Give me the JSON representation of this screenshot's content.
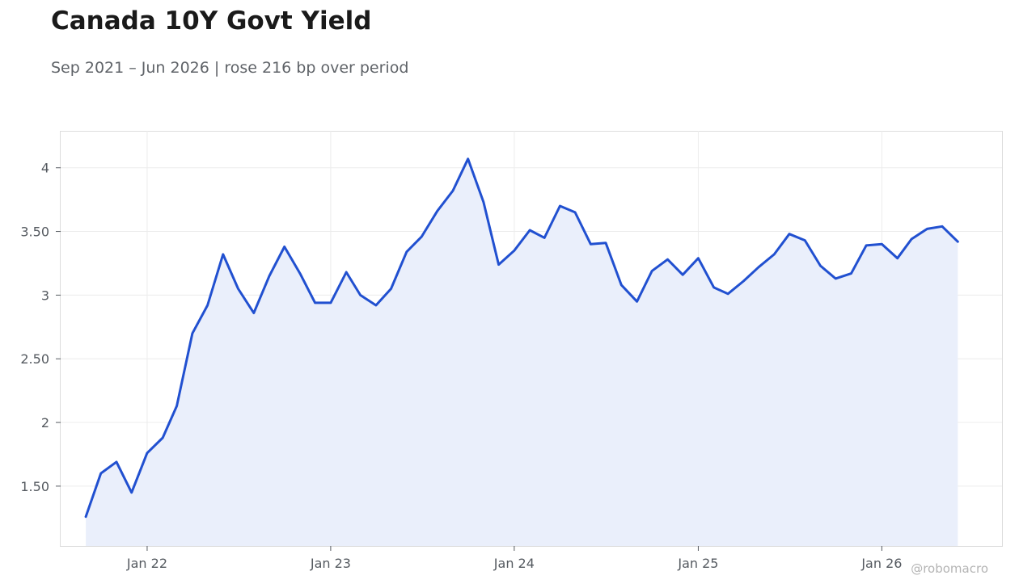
{
  "title": "Canada 10Y Govt Yield",
  "subtitle": "Sep 2021 – Jun 2026 | rose 216 bp over period",
  "watermark": "@robomacro",
  "colors": {
    "line": "#2150d0",
    "fill": "#eaeffb",
    "grid": "#ececec",
    "frame": "#dddddd",
    "title": "#1a1a1a",
    "subtitle": "#5f6368",
    "tick": "#555a60"
  },
  "chart_data": {
    "type": "area",
    "title": "Canada 10Y Govt Yield",
    "xlabel": "",
    "ylabel": "",
    "ylim": [
      1.03,
      4.29
    ],
    "xlim": [
      "2021-07-13",
      "2026-08-28"
    ],
    "grid": true,
    "legend": "none",
    "x_ticks": [
      {
        "date": "2022-01-01",
        "label": "Jan 22"
      },
      {
        "date": "2023-01-01",
        "label": "Jan 23"
      },
      {
        "date": "2024-01-01",
        "label": "Jan 24"
      },
      {
        "date": "2025-01-01",
        "label": "Jan 25"
      },
      {
        "date": "2026-01-01",
        "label": "Jan 26"
      }
    ],
    "y_ticks": [
      {
        "value": 1.5,
        "label": "1.50"
      },
      {
        "value": 2,
        "label": "2"
      },
      {
        "value": 2.5,
        "label": "2.50"
      },
      {
        "value": 3,
        "label": "3"
      },
      {
        "value": 3.5,
        "label": "3.50"
      },
      {
        "value": 4,
        "label": "4"
      }
    ],
    "series": [
      {
        "x": [
          "2021-09-01",
          "2021-10-01",
          "2021-11-01",
          "2021-12-01",
          "2022-01-01",
          "2022-02-01",
          "2022-03-01",
          "2022-04-01",
          "2022-05-01",
          "2022-06-01",
          "2022-07-01",
          "2022-08-01",
          "2022-09-01",
          "2022-10-01",
          "2022-11-01",
          "2022-12-01",
          "2023-01-01",
          "2023-02-01",
          "2023-03-01",
          "2023-04-01",
          "2023-05-01",
          "2023-06-01",
          "2023-07-01",
          "2023-08-01",
          "2023-09-01",
          "2023-10-01",
          "2023-11-01",
          "2023-12-01",
          "2024-01-01",
          "2024-02-01",
          "2024-03-01",
          "2024-04-01",
          "2024-05-01",
          "2024-06-01",
          "2024-07-01",
          "2024-08-01",
          "2024-09-01",
          "2024-10-01",
          "2024-11-01",
          "2024-12-01",
          "2025-01-01",
          "2025-02-01",
          "2025-03-01",
          "2025-04-01",
          "2025-05-01",
          "2025-06-01",
          "2025-07-01",
          "2025-08-01",
          "2025-09-01",
          "2025-10-01",
          "2025-11-01",
          "2025-12-01",
          "2026-01-01",
          "2026-02-01",
          "2026-03-01",
          "2026-04-01",
          "2026-05-01",
          "2026-06-01"
        ],
        "values": [
          1.26,
          1.6,
          1.69,
          1.45,
          1.76,
          1.88,
          2.13,
          2.7,
          2.92,
          3.32,
          3.05,
          2.86,
          3.15,
          3.38,
          3.17,
          2.94,
          2.94,
          3.18,
          3.0,
          2.92,
          3.05,
          3.34,
          3.46,
          3.66,
          3.82,
          4.07,
          3.73,
          3.24,
          3.35,
          3.51,
          3.45,
          3.7,
          3.65,
          3.4,
          3.41,
          3.08,
          2.95,
          3.19,
          3.28,
          3.16,
          3.29,
          3.06,
          3.01,
          3.11,
          3.22,
          3.32,
          3.48,
          3.43,
          3.23,
          3.13,
          3.17,
          3.39,
          3.4,
          3.29,
          3.44,
          3.52,
          3.54,
          3.42
        ]
      }
    ]
  }
}
